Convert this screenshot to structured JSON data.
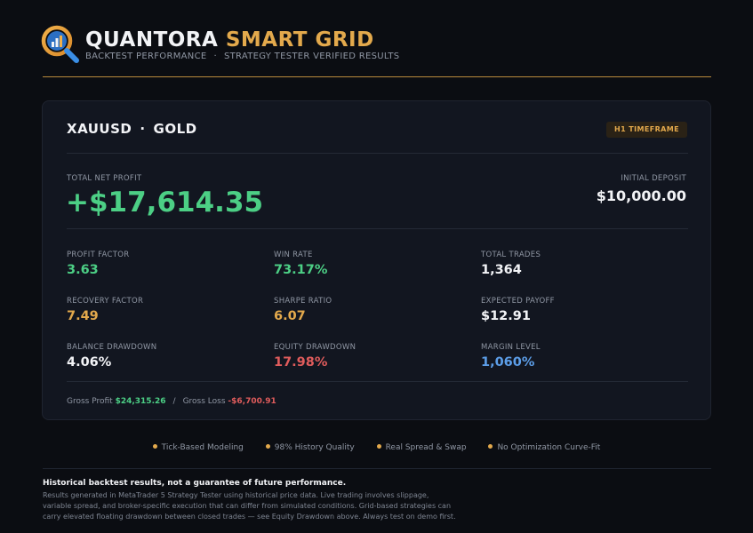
{
  "brand": {
    "name_primary": "QUANTORA",
    "name_accent": "SMART GRID",
    "subtitle_left": "BACKTEST PERFORMANCE",
    "subtitle_sep": "·",
    "subtitle_right": "STRATEGY TESTER VERIFIED RESULTS",
    "logo_icon": "magnifier-chart-icon"
  },
  "card": {
    "symbol": "XAUUSD",
    "symbol_sep": "·",
    "asset": "GOLD",
    "timeframe_badge": "H1 TIMEFRAME",
    "net_profit_label": "TOTAL NET PROFIT",
    "net_profit_value": "+$17,614.35",
    "deposit_label": "INITIAL DEPOSIT",
    "deposit_value": "$10,000.00",
    "metrics": [
      {
        "label": "PROFIT FACTOR",
        "value": "3.63"
      },
      {
        "label": "WIN RATE",
        "value": "73.17%"
      },
      {
        "label": "TOTAL TRADES",
        "value": "1,364"
      },
      {
        "label": "RECOVERY FACTOR",
        "value": "7.49"
      },
      {
        "label": "SHARPE RATIO",
        "value": "6.07"
      },
      {
        "label": "EXPECTED PAYOFF",
        "value": "$12.91"
      },
      {
        "label": "BALANCE DRAWDOWN",
        "value": "4.06%"
      },
      {
        "label": "EQUITY DRAWDOWN",
        "value": "17.98%"
      },
      {
        "label": "MARGIN LEVEL",
        "value": "1,060%"
      }
    ],
    "gross_profit_label": "Gross Profit",
    "gross_profit_value": "$24,315.26",
    "gross_sep": "/",
    "gross_loss_label": "Gross Loss",
    "gross_loss_value": "-$6,700.91"
  },
  "features": [
    "Tick-Based Modeling",
    "98% History Quality",
    "Real Spread & Swap",
    "No Optimization Curve-Fit"
  ],
  "disclaimer": {
    "title": "Historical backtest results, not a guarantee of future performance.",
    "lines": [
      "Results generated in MetaTrader 5 Strategy Tester using historical price data. Live trading involves slippage,",
      "variable spread, and broker-specific execution that can differ from simulated conditions. Grid-based strategies can",
      "carry elevated floating drawdown between closed trades — see Equity Drawdown above. Always test on demo first."
    ]
  },
  "colors": {
    "accent": "#e3a94c",
    "positive": "#4ccf85",
    "negative": "#e05c5c",
    "info": "#5c9ee8",
    "background": "#0b0d12",
    "card": "#121620"
  }
}
